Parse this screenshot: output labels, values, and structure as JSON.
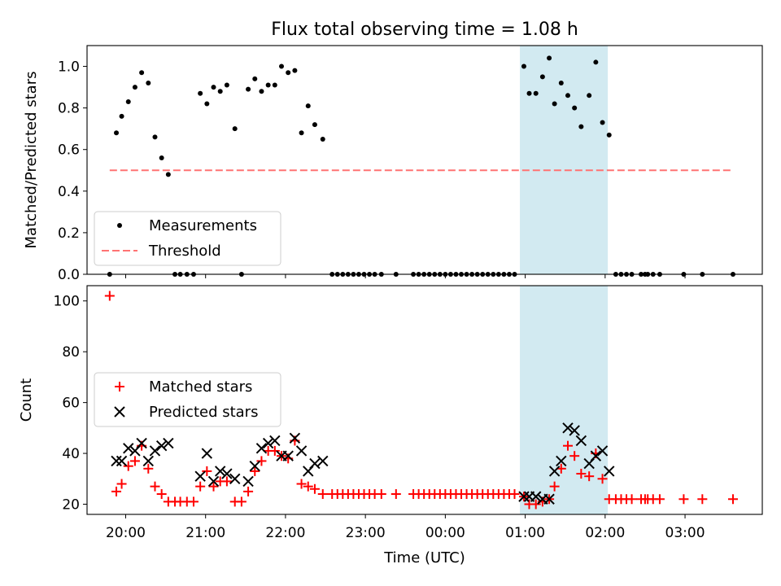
{
  "figure": {
    "title": "Flux total observing time = 1.08 h",
    "shaded_region_color": "#add8e6"
  },
  "chart_data": [
    {
      "type": "scatter",
      "panel": "top",
      "ylabel": "Matched/Predicted stars",
      "xlabel": "",
      "xlim": [
        "19:31",
        "03:58"
      ],
      "ylim": [
        0.0,
        1.1
      ],
      "yticks": [
        "0.0",
        "0.2",
        "0.4",
        "0.6",
        "0.8",
        "1.0"
      ],
      "shaded_span": [
        "00:56",
        "02:02"
      ],
      "legend_position": "lower-left",
      "series": [
        {
          "name": "Measurements",
          "marker": "dot",
          "color": "#000000",
          "points": [
            [
              "19:48",
              0.0
            ],
            [
              "19:53",
              0.68
            ],
            [
              "19:57",
              0.76
            ],
            [
              "20:02",
              0.83
            ],
            [
              "20:07",
              0.9
            ],
            [
              "20:12",
              0.97
            ],
            [
              "20:17",
              0.92
            ],
            [
              "20:22",
              0.66
            ],
            [
              "20:27",
              0.56
            ],
            [
              "20:32",
              0.48
            ],
            [
              "20:37",
              0.0
            ],
            [
              "20:41",
              0.0
            ],
            [
              "20:46",
              0.0
            ],
            [
              "20:51",
              0.0
            ],
            [
              "20:56",
              0.87
            ],
            [
              "21:01",
              0.82
            ],
            [
              "21:06",
              0.9
            ],
            [
              "21:11",
              0.88
            ],
            [
              "21:16",
              0.91
            ],
            [
              "21:22",
              0.7
            ],
            [
              "21:27",
              0.0
            ],
            [
              "21:32",
              0.89
            ],
            [
              "21:37",
              0.94
            ],
            [
              "21:42",
              0.88
            ],
            [
              "21:47",
              0.91
            ],
            [
              "21:52",
              0.91
            ],
            [
              "21:57",
              1.0
            ],
            [
              "22:02",
              0.97
            ],
            [
              "22:07",
              0.98
            ],
            [
              "22:12",
              0.68
            ],
            [
              "22:17",
              0.81
            ],
            [
              "22:22",
              0.72
            ],
            [
              "22:28",
              0.65
            ],
            [
              "22:35",
              0.0
            ],
            [
              "22:39",
              0.0
            ],
            [
              "22:43",
              0.0
            ],
            [
              "22:47",
              0.0
            ],
            [
              "22:51",
              0.0
            ],
            [
              "22:55",
              0.0
            ],
            [
              "22:59",
              0.0
            ],
            [
              "23:03",
              0.0
            ],
            [
              "23:07",
              0.0
            ],
            [
              "23:12",
              0.0
            ],
            [
              "23:23",
              0.0
            ],
            [
              "23:36",
              0.0
            ],
            [
              "23:40",
              0.0
            ],
            [
              "23:44",
              0.0
            ],
            [
              "23:48",
              0.0
            ],
            [
              "23:52",
              0.0
            ],
            [
              "23:56",
              0.0
            ],
            [
              "00:00",
              0.0
            ],
            [
              "00:04",
              0.0
            ],
            [
              "00:08",
              0.0
            ],
            [
              "00:12",
              0.0
            ],
            [
              "00:16",
              0.0
            ],
            [
              "00:20",
              0.0
            ],
            [
              "00:24",
              0.0
            ],
            [
              "00:28",
              0.0
            ],
            [
              "00:32",
              0.0
            ],
            [
              "00:36",
              0.0
            ],
            [
              "00:40",
              0.0
            ],
            [
              "00:44",
              0.0
            ],
            [
              "00:48",
              0.0
            ],
            [
              "00:52",
              0.0
            ],
            [
              "00:59",
              1.0
            ],
            [
              "01:03",
              0.87
            ],
            [
              "01:08",
              0.87
            ],
            [
              "01:13",
              0.95
            ],
            [
              "01:18",
              1.04
            ],
            [
              "01:22",
              0.82
            ],
            [
              "01:27",
              0.92
            ],
            [
              "01:32",
              0.86
            ],
            [
              "01:37",
              0.8
            ],
            [
              "01:42",
              0.71
            ],
            [
              "01:48",
              0.86
            ],
            [
              "01:53",
              1.02
            ],
            [
              "01:58",
              0.73
            ],
            [
              "02:03",
              0.67
            ],
            [
              "02:08",
              0.0
            ],
            [
              "02:12",
              0.0
            ],
            [
              "02:16",
              0.0
            ],
            [
              "02:20",
              0.0
            ],
            [
              "02:27",
              0.0
            ],
            [
              "02:30",
              0.0
            ],
            [
              "02:32",
              0.0
            ],
            [
              "02:36",
              0.0
            ],
            [
              "02:41",
              0.0
            ],
            [
              "02:59",
              0.0
            ],
            [
              "03:13",
              0.0
            ],
            [
              "03:36",
              0.0
            ]
          ]
        },
        {
          "name": "Threshold",
          "marker": "dashed-line",
          "color": "#ff7373",
          "points": [
            [
              "19:48",
              0.5
            ],
            [
              "03:36",
              0.5
            ]
          ]
        }
      ]
    },
    {
      "type": "scatter",
      "panel": "bottom",
      "ylabel": "Count",
      "xlabel": "Time (UTC)",
      "xlim": [
        "19:31",
        "03:58"
      ],
      "ylim": [
        16,
        106
      ],
      "yticks": [
        "20",
        "40",
        "60",
        "80",
        "100"
      ],
      "xticks": [
        "20:00",
        "21:00",
        "22:00",
        "23:00",
        "00:00",
        "01:00",
        "02:00",
        "03:00"
      ],
      "shaded_span": [
        "00:56",
        "02:02"
      ],
      "legend_position": "center-left",
      "series": [
        {
          "name": "Matched stars",
          "marker": "plus",
          "color": "#ff0000",
          "points": [
            [
              "19:48",
              102
            ],
            [
              "19:53",
              25
            ],
            [
              "19:57",
              28
            ],
            [
              "20:02",
              35
            ],
            [
              "20:07",
              37
            ],
            [
              "20:12",
              43
            ],
            [
              "20:17",
              34
            ],
            [
              "20:22",
              27
            ],
            [
              "20:27",
              24
            ],
            [
              "20:32",
              21
            ],
            [
              "20:37",
              21
            ],
            [
              "20:41",
              21
            ],
            [
              "20:46",
              21
            ],
            [
              "20:51",
              21
            ],
            [
              "20:56",
              27
            ],
            [
              "21:01",
              33
            ],
            [
              "21:06",
              27
            ],
            [
              "21:11",
              29
            ],
            [
              "21:16",
              29
            ],
            [
              "21:22",
              21
            ],
            [
              "21:27",
              21
            ],
            [
              "21:32",
              25
            ],
            [
              "21:37",
              33
            ],
            [
              "21:42",
              37
            ],
            [
              "21:47",
              41
            ],
            [
              "21:52",
              41
            ],
            [
              "21:57",
              39
            ],
            [
              "22:02",
              38
            ],
            [
              "22:07",
              45
            ],
            [
              "22:12",
              28
            ],
            [
              "22:17",
              27
            ],
            [
              "22:22",
              26
            ],
            [
              "22:28",
              24
            ],
            [
              "22:35",
              24
            ],
            [
              "22:39",
              24
            ],
            [
              "22:43",
              24
            ],
            [
              "22:47",
              24
            ],
            [
              "22:51",
              24
            ],
            [
              "22:55",
              24
            ],
            [
              "22:59",
              24
            ],
            [
              "23:03",
              24
            ],
            [
              "23:07",
              24
            ],
            [
              "23:12",
              24
            ],
            [
              "23:23",
              24
            ],
            [
              "23:36",
              24
            ],
            [
              "23:40",
              24
            ],
            [
              "23:44",
              24
            ],
            [
              "23:48",
              24
            ],
            [
              "23:52",
              24
            ],
            [
              "23:56",
              24
            ],
            [
              "00:00",
              24
            ],
            [
              "00:04",
              24
            ],
            [
              "00:08",
              24
            ],
            [
              "00:12",
              24
            ],
            [
              "00:16",
              24
            ],
            [
              "00:20",
              24
            ],
            [
              "00:24",
              24
            ],
            [
              "00:28",
              24
            ],
            [
              "00:32",
              24
            ],
            [
              "00:36",
              24
            ],
            [
              "00:40",
              24
            ],
            [
              "00:44",
              24
            ],
            [
              "00:48",
              24
            ],
            [
              "00:52",
              24
            ],
            [
              "00:59",
              23
            ],
            [
              "01:03",
              20
            ],
            [
              "01:08",
              20
            ],
            [
              "01:13",
              21
            ],
            [
              "01:18",
              22
            ],
            [
              "01:22",
              27
            ],
            [
              "01:27",
              34
            ],
            [
              "01:32",
              43
            ],
            [
              "01:37",
              39
            ],
            [
              "01:42",
              32
            ],
            [
              "01:48",
              31
            ],
            [
              "01:53",
              40
            ],
            [
              "01:58",
              30
            ],
            [
              "02:03",
              22
            ],
            [
              "02:08",
              22
            ],
            [
              "02:12",
              22
            ],
            [
              "02:16",
              22
            ],
            [
              "02:20",
              22
            ],
            [
              "02:27",
              22
            ],
            [
              "02:30",
              22
            ],
            [
              "02:32",
              22
            ],
            [
              "02:36",
              22
            ],
            [
              "02:41",
              22
            ],
            [
              "02:59",
              22
            ],
            [
              "03:13",
              22
            ],
            [
              "03:36",
              22
            ]
          ]
        },
        {
          "name": "Predicted stars",
          "marker": "x",
          "color": "#000000",
          "points": [
            [
              "19:53",
              37
            ],
            [
              "19:57",
              37
            ],
            [
              "20:02",
              42
            ],
            [
              "20:07",
              41
            ],
            [
              "20:12",
              44
            ],
            [
              "20:17",
              37
            ],
            [
              "20:22",
              41
            ],
            [
              "20:27",
              43
            ],
            [
              "20:32",
              44
            ],
            [
              "20:56",
              31
            ],
            [
              "21:01",
              40
            ],
            [
              "21:06",
              29
            ],
            [
              "21:11",
              33
            ],
            [
              "21:16",
              32
            ],
            [
              "21:22",
              30
            ],
            [
              "21:32",
              29
            ],
            [
              "21:37",
              35
            ],
            [
              "21:42",
              42
            ],
            [
              "21:47",
              44
            ],
            [
              "21:52",
              45
            ],
            [
              "21:57",
              39
            ],
            [
              "22:02",
              39
            ],
            [
              "22:07",
              46
            ],
            [
              "22:12",
              41
            ],
            [
              "22:17",
              33
            ],
            [
              "22:22",
              36
            ],
            [
              "22:28",
              37
            ],
            [
              "00:59",
              23
            ],
            [
              "01:03",
              23
            ],
            [
              "01:08",
              23
            ],
            [
              "01:13",
              22
            ],
            [
              "01:18",
              22
            ],
            [
              "01:22",
              33
            ],
            [
              "01:27",
              37
            ],
            [
              "01:32",
              50
            ],
            [
              "01:37",
              49
            ],
            [
              "01:42",
              45
            ],
            [
              "01:48",
              36
            ],
            [
              "01:53",
              39
            ],
            [
              "01:58",
              41
            ],
            [
              "02:03",
              33
            ]
          ]
        }
      ]
    }
  ]
}
